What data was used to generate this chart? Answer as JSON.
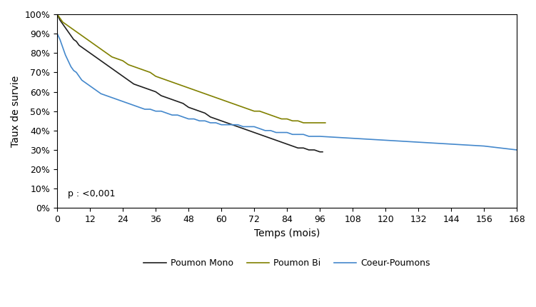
{
  "title": "",
  "xlabel": "Temps (mois)",
  "ylabel": "Taux de survie",
  "xlim": [
    0,
    168
  ],
  "ylim": [
    0,
    1.0
  ],
  "xticks": [
    0,
    12,
    24,
    36,
    48,
    60,
    72,
    84,
    96,
    108,
    120,
    132,
    144,
    156,
    168
  ],
  "yticks": [
    0,
    0.1,
    0.2,
    0.3,
    0.4,
    0.5,
    0.6,
    0.7,
    0.8,
    0.9,
    1.0
  ],
  "p_text": "p : <0,001",
  "legend_labels": [
    "Poumon Mono",
    "Poumon Bi",
    "Coeur-Poumons"
  ],
  "line_colors": [
    "#1f1f1f",
    "#808000",
    "#4488cc"
  ],
  "line_styles": [
    "-",
    "-",
    "-"
  ],
  "background_color": "#ffffff",
  "poumon_mono": {
    "x": [
      0,
      1,
      2,
      3,
      4,
      5,
      6,
      7,
      8,
      9,
      10,
      11,
      12,
      14,
      16,
      18,
      20,
      22,
      24,
      26,
      28,
      30,
      32,
      34,
      36,
      38,
      40,
      42,
      44,
      46,
      48,
      50,
      52,
      54,
      56,
      58,
      60,
      62,
      64,
      66,
      68,
      70,
      72,
      74,
      76,
      78,
      80,
      82,
      84,
      86,
      88,
      90,
      92,
      94,
      96,
      97
    ],
    "y": [
      1.0,
      0.97,
      0.95,
      0.93,
      0.91,
      0.89,
      0.87,
      0.86,
      0.84,
      0.83,
      0.82,
      0.81,
      0.8,
      0.78,
      0.76,
      0.74,
      0.72,
      0.7,
      0.68,
      0.66,
      0.64,
      0.63,
      0.62,
      0.61,
      0.6,
      0.58,
      0.57,
      0.56,
      0.55,
      0.54,
      0.52,
      0.51,
      0.5,
      0.49,
      0.47,
      0.46,
      0.45,
      0.44,
      0.43,
      0.42,
      0.41,
      0.4,
      0.39,
      0.38,
      0.37,
      0.36,
      0.35,
      0.34,
      0.33,
      0.32,
      0.31,
      0.31,
      0.3,
      0.3,
      0.29,
      0.29
    ]
  },
  "poumon_bi": {
    "x": [
      0,
      1,
      2,
      3,
      4,
      5,
      6,
      7,
      8,
      9,
      10,
      11,
      12,
      14,
      16,
      18,
      20,
      22,
      24,
      26,
      28,
      30,
      32,
      34,
      36,
      38,
      40,
      42,
      44,
      46,
      48,
      50,
      52,
      54,
      56,
      58,
      60,
      62,
      64,
      66,
      68,
      70,
      72,
      74,
      76,
      78,
      80,
      82,
      84,
      86,
      88,
      90,
      92,
      94,
      96,
      98
    ],
    "y": [
      1.0,
      0.98,
      0.96,
      0.95,
      0.94,
      0.93,
      0.92,
      0.91,
      0.9,
      0.89,
      0.88,
      0.87,
      0.86,
      0.84,
      0.82,
      0.8,
      0.78,
      0.77,
      0.76,
      0.74,
      0.73,
      0.72,
      0.71,
      0.7,
      0.68,
      0.67,
      0.66,
      0.65,
      0.64,
      0.63,
      0.62,
      0.61,
      0.6,
      0.59,
      0.58,
      0.57,
      0.56,
      0.55,
      0.54,
      0.53,
      0.52,
      0.51,
      0.5,
      0.5,
      0.49,
      0.48,
      0.47,
      0.46,
      0.46,
      0.45,
      0.45,
      0.44,
      0.44,
      0.44,
      0.44,
      0.44
    ]
  },
  "coeur_poumons": {
    "x": [
      0,
      1,
      2,
      3,
      4,
      5,
      6,
      7,
      8,
      9,
      10,
      11,
      12,
      14,
      16,
      18,
      20,
      22,
      24,
      26,
      28,
      30,
      32,
      34,
      36,
      38,
      40,
      42,
      44,
      46,
      48,
      50,
      52,
      54,
      56,
      58,
      60,
      62,
      64,
      66,
      68,
      70,
      72,
      74,
      76,
      78,
      80,
      82,
      84,
      86,
      88,
      90,
      92,
      94,
      96,
      108,
      120,
      132,
      144,
      156,
      168
    ],
    "y": [
      0.9,
      0.87,
      0.83,
      0.79,
      0.76,
      0.73,
      0.71,
      0.7,
      0.68,
      0.66,
      0.65,
      0.64,
      0.63,
      0.61,
      0.59,
      0.58,
      0.57,
      0.56,
      0.55,
      0.54,
      0.53,
      0.52,
      0.51,
      0.51,
      0.5,
      0.5,
      0.49,
      0.48,
      0.48,
      0.47,
      0.46,
      0.46,
      0.45,
      0.45,
      0.44,
      0.44,
      0.43,
      0.43,
      0.43,
      0.43,
      0.42,
      0.42,
      0.42,
      0.41,
      0.4,
      0.4,
      0.39,
      0.39,
      0.39,
      0.38,
      0.38,
      0.38,
      0.37,
      0.37,
      0.37,
      0.36,
      0.35,
      0.34,
      0.33,
      0.32,
      0.3
    ]
  }
}
